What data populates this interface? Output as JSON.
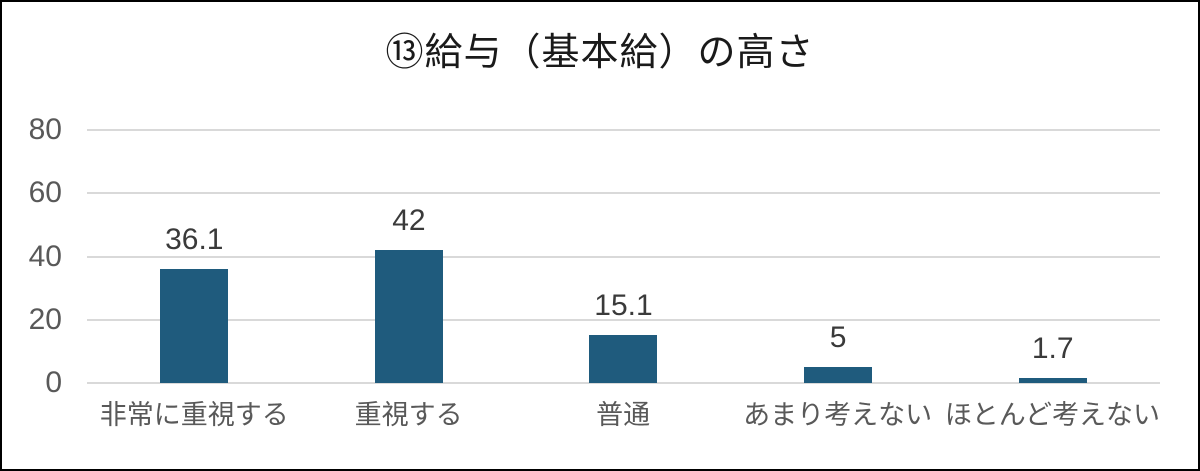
{
  "chart_data": {
    "type": "bar",
    "title": "⑬給与（基本給）の高さ",
    "categories": [
      "非常に重視する",
      "重視する",
      "普通",
      "あまり考えない",
      "ほとんど考えない"
    ],
    "values": [
      36.1,
      42,
      15.1,
      5,
      1.7
    ],
    "value_labels": [
      "36.1",
      "42",
      "15.1",
      "5",
      "1.7"
    ],
    "xlabel": "",
    "ylabel": "",
    "ylim": [
      0,
      80
    ],
    "yticks": [
      0,
      20,
      40,
      60,
      80
    ],
    "grid": "horizontal",
    "legend": "none",
    "colors": {
      "bar": "#1F5B7D",
      "gridline": "#D9D9D9",
      "tick_label": "#595959",
      "category_label": "#595959",
      "data_label": "#3A3A3A",
      "title": "#1A1A1A",
      "border": "#000000",
      "background": "#FFFFFF"
    }
  }
}
